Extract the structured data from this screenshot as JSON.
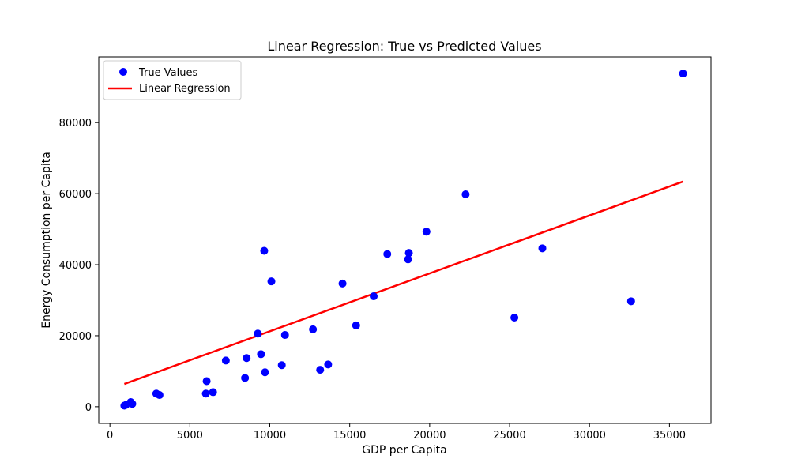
{
  "chart_data": {
    "type": "scatter",
    "title": "Linear Regression: True vs Predicted Values",
    "xlabel": "GDP per Capita",
    "ylabel": "Energy Consumption per Capita",
    "xlim": [
      -700,
      37600
    ],
    "ylim": [
      -4700,
      98500
    ],
    "xticks": [
      0,
      5000,
      10000,
      15000,
      20000,
      25000,
      30000,
      35000
    ],
    "yticks": [
      0,
      20000,
      40000,
      60000,
      80000
    ],
    "grid": false,
    "legend": {
      "placement": "upper-left",
      "entries": [
        {
          "label": "True Values",
          "marker": "dot",
          "color": "#0000ff"
        },
        {
          "label": "Linear Regression",
          "marker": "line",
          "color": "#ff0000"
        }
      ]
    },
    "series": [
      {
        "name": "True Values",
        "color": "#0000ff",
        "kind": "scatter",
        "points": [
          [
            900,
            300
          ],
          [
            1000,
            500
          ],
          [
            1300,
            1300
          ],
          [
            1400,
            800
          ],
          [
            2900,
            3700
          ],
          [
            3100,
            3300
          ],
          [
            6000,
            3700
          ],
          [
            6050,
            7200
          ],
          [
            6450,
            4100
          ],
          [
            7250,
            13000
          ],
          [
            8450,
            8100
          ],
          [
            8550,
            13700
          ],
          [
            9250,
            20600
          ],
          [
            9450,
            14800
          ],
          [
            9650,
            43900
          ],
          [
            9700,
            9700
          ],
          [
            10100,
            35300
          ],
          [
            10750,
            11700
          ],
          [
            10950,
            20200
          ],
          [
            12700,
            21800
          ],
          [
            13150,
            10400
          ],
          [
            13650,
            11900
          ],
          [
            14550,
            34700
          ],
          [
            15400,
            22900
          ],
          [
            16500,
            31100
          ],
          [
            17350,
            43000
          ],
          [
            18650,
            41500
          ],
          [
            18700,
            43300
          ],
          [
            19800,
            49300
          ],
          [
            22250,
            59800
          ],
          [
            25300,
            25100
          ],
          [
            27050,
            44600
          ],
          [
            32600,
            29700
          ],
          [
            35850,
            93800
          ]
        ]
      },
      {
        "name": "Linear Regression",
        "color": "#ff0000",
        "kind": "line",
        "points": [
          [
            900,
            6400
          ],
          [
            35850,
            63400
          ]
        ]
      }
    ]
  }
}
